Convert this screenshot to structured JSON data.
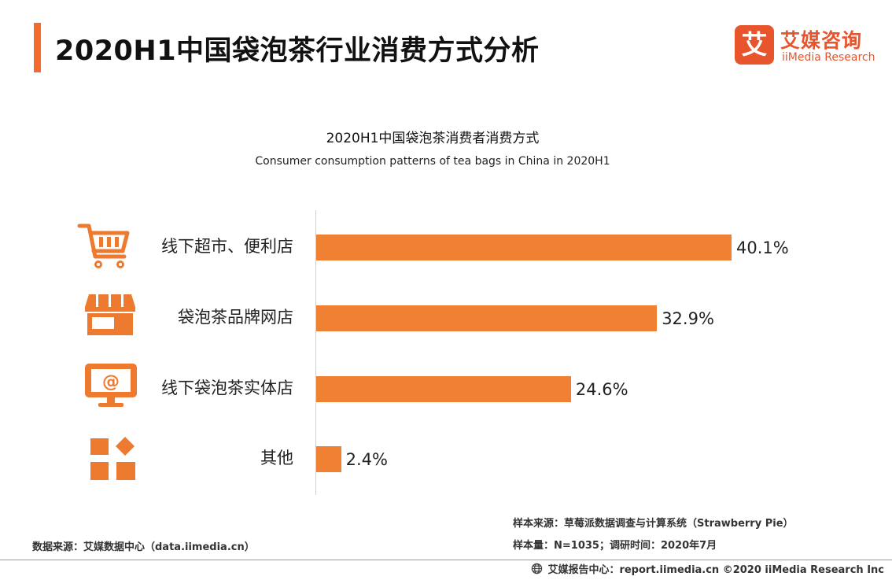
{
  "header": {
    "title": "2020H1中国袋泡茶行业消费方式分析",
    "accent_color": "#F26A2E"
  },
  "logo": {
    "mark": "艾",
    "name_cn": "艾媒咨询",
    "name_en": "iiMedia Research",
    "color": "#E8542C"
  },
  "chart_data": {
    "type": "bar",
    "orientation": "horizontal",
    "title": "2020H1中国袋泡茶消费者消费方式",
    "subtitle": "Consumer consumption patterns of tea bags in China in 2020H1",
    "categories": [
      "线下超市、便利店",
      "袋泡茶品牌网店",
      "线下袋泡茶实体店",
      "其他"
    ],
    "values": [
      40.1,
      32.9,
      24.6,
      2.4
    ],
    "value_labels": [
      "40.1%",
      "32.9%",
      "24.6%",
      "2.4%"
    ],
    "icons": [
      "shopping-cart-icon",
      "storefront-icon",
      "computer-at-icon",
      "grid-shapes-icon"
    ],
    "unit": "%",
    "xlim": [
      0,
      40.1
    ],
    "bar_color": "#F08132",
    "icon_color": "#EE7A2F"
  },
  "source": {
    "data_source": "数据来源：艾媒数据中心（data.iimedia.cn）",
    "sample_source": "样本来源：草莓派数据调查与计算系统（Strawberry Pie）",
    "sample_size": "样本量：N=1035；调研时间：2020年7月"
  },
  "footer": {
    "text": "艾媒报告中心：report.iimedia.cn  ©2020  iiMedia Research  Inc"
  }
}
